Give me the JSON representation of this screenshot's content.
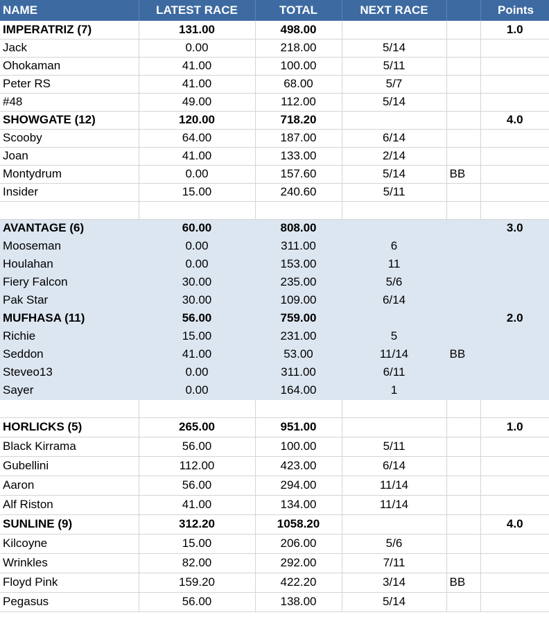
{
  "headers": {
    "name": "NAME",
    "latest": "LATEST RACE",
    "total": "TOTAL",
    "next": "NEXT RACE",
    "extra": "",
    "points": "Points"
  },
  "rows": [
    {
      "type": "team",
      "shade": false,
      "h": 26,
      "name": "IMPERATRIZ (7)",
      "latest": "131.00",
      "total": "498.00",
      "next": "",
      "extra": "",
      "points": "1.0"
    },
    {
      "type": "horse",
      "shade": false,
      "h": 26,
      "name": "Jack",
      "latest": "0.00",
      "total": "218.00",
      "next": "5/14",
      "extra": "",
      "points": ""
    },
    {
      "type": "horse",
      "shade": false,
      "h": 26,
      "name": "Ohokaman",
      "latest": "41.00",
      "total": "100.00",
      "next": "5/11",
      "extra": "",
      "points": ""
    },
    {
      "type": "horse",
      "shade": false,
      "h": 26,
      "name": "Peter RS",
      "latest": "41.00",
      "total": "68.00",
      "next": "5/7",
      "extra": "",
      "points": ""
    },
    {
      "type": "horse",
      "shade": false,
      "h": 26,
      "name": "#48",
      "latest": "49.00",
      "total": "112.00",
      "next": "5/14",
      "extra": "",
      "points": ""
    },
    {
      "type": "team",
      "shade": false,
      "h": 26,
      "name": "SHOWGATE (12)",
      "latest": "120.00",
      "total": "718.20",
      "next": "",
      "extra": "",
      "points": "4.0"
    },
    {
      "type": "horse",
      "shade": false,
      "h": 26,
      "name": "Scooby",
      "latest": "64.00",
      "total": "187.00",
      "next": "6/14",
      "extra": "",
      "points": ""
    },
    {
      "type": "horse",
      "shade": false,
      "h": 26,
      "name": "Joan",
      "latest": "41.00",
      "total": "133.00",
      "next": "2/14",
      "extra": "",
      "points": ""
    },
    {
      "type": "horse",
      "shade": false,
      "h": 26,
      "name": "Montydrum",
      "latest": "0.00",
      "total": "157.60",
      "next": "5/14",
      "extra": "BB",
      "points": ""
    },
    {
      "type": "horse",
      "shade": false,
      "h": 26,
      "name": "Insider",
      "latest": "15.00",
      "total": "240.60",
      "next": "5/11",
      "extra": "",
      "points": ""
    },
    {
      "type": "blank",
      "shade": false,
      "h": 26,
      "name": "",
      "latest": "",
      "total": "",
      "next": "",
      "extra": "",
      "points": ""
    },
    {
      "type": "team",
      "shade": true,
      "h": 26,
      "name": "AVANTAGE (6)",
      "latest": "60.00",
      "total": "808.00",
      "next": "",
      "extra": "",
      "points": "3.0"
    },
    {
      "type": "horse",
      "shade": true,
      "h": 26,
      "name": "Mooseman",
      "latest": "0.00",
      "total": "311.00",
      "next": "6",
      "extra": "",
      "points": ""
    },
    {
      "type": "horse",
      "shade": true,
      "h": 26,
      "name": "Houlahan",
      "latest": "0.00",
      "total": "153.00",
      "next": "11",
      "extra": "",
      "points": ""
    },
    {
      "type": "horse",
      "shade": true,
      "h": 26,
      "name": "Fiery Falcon",
      "latest": "30.00",
      "total": "235.00",
      "next": "5/6",
      "extra": "",
      "points": ""
    },
    {
      "type": "horse",
      "shade": true,
      "h": 26,
      "name": "Pak Star",
      "latest": "30.00",
      "total": "109.00",
      "next": "6/14",
      "extra": "",
      "points": ""
    },
    {
      "type": "team",
      "shade": true,
      "h": 26,
      "name": "MUFHASA (11)",
      "latest": "56.00",
      "total": "759.00",
      "next": "",
      "extra": "",
      "points": "2.0"
    },
    {
      "type": "horse",
      "shade": true,
      "h": 26,
      "name": "Richie",
      "latest": "15.00",
      "total": "231.00",
      "next": "5",
      "extra": "",
      "points": ""
    },
    {
      "type": "horse",
      "shade": true,
      "h": 26,
      "name": "Seddon",
      "latest": "41.00",
      "total": "53.00",
      "next": "11/14",
      "extra": "BB",
      "points": ""
    },
    {
      "type": "horse",
      "shade": true,
      "h": 26,
      "name": "Steveo13",
      "latest": "0.00",
      "total": "311.00",
      "next": "6/11",
      "extra": "",
      "points": ""
    },
    {
      "type": "horse",
      "shade": true,
      "h": 26,
      "name": "Sayer",
      "latest": "0.00",
      "total": "164.00",
      "next": "1",
      "extra": "",
      "points": ""
    },
    {
      "type": "blank",
      "shade": false,
      "h": 26,
      "name": "",
      "latest": "",
      "total": "",
      "next": "",
      "extra": "",
      "points": ""
    },
    {
      "type": "team",
      "shade": false,
      "h": 28,
      "name": "HORLICKS (5)",
      "latest": "265.00",
      "total": "951.00",
      "next": "",
      "extra": "",
      "points": "1.0"
    },
    {
      "type": "horse",
      "shade": false,
      "h": 28,
      "name": "Black Kirrama",
      "latest": "56.00",
      "total": "100.00",
      "next": "5/11",
      "extra": "",
      "points": ""
    },
    {
      "type": "horse",
      "shade": false,
      "h": 28,
      "name": "Gubellini",
      "latest": "112.00",
      "total": "423.00",
      "next": "6/14",
      "extra": "",
      "points": ""
    },
    {
      "type": "horse",
      "shade": false,
      "h": 28,
      "name": "Aaron",
      "latest": "56.00",
      "total": "294.00",
      "next": "11/14",
      "extra": "",
      "points": ""
    },
    {
      "type": "horse",
      "shade": false,
      "h": 28,
      "name": "Alf Riston",
      "latest": "41.00",
      "total": "134.00",
      "next": "11/14",
      "extra": "",
      "points": ""
    },
    {
      "type": "team",
      "shade": false,
      "h": 28,
      "name": "SUNLINE (9)",
      "latest": "312.20",
      "total": "1058.20",
      "next": "",
      "extra": "",
      "points": "4.0"
    },
    {
      "type": "horse",
      "shade": false,
      "h": 28,
      "name": "Kilcoyne",
      "latest": "15.00",
      "total": "206.00",
      "next": "5/6",
      "extra": "",
      "points": ""
    },
    {
      "type": "horse",
      "shade": false,
      "h": 28,
      "name": "Wrinkles",
      "latest": "82.00",
      "total": "292.00",
      "next": "7/11",
      "extra": "",
      "points": ""
    },
    {
      "type": "horse",
      "shade": false,
      "h": 28,
      "name": "Floyd Pink",
      "latest": "159.20",
      "total": "422.20",
      "next": "3/14",
      "extra": "BB",
      "points": ""
    },
    {
      "type": "horse",
      "shade": false,
      "h": 28,
      "name": "Pegasus",
      "latest": "56.00",
      "total": "138.00",
      "next": "5/14",
      "extra": "",
      "points": ""
    }
  ]
}
